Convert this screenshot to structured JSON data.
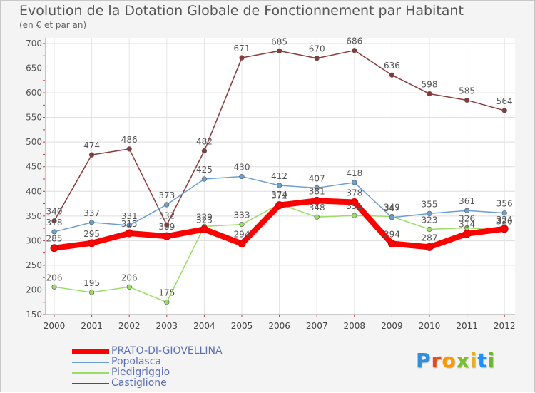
{
  "chart_data": {
    "type": "line",
    "title": "Evolution de la Dotation Globale de Fonctionnement par Habitant",
    "subtitle": "(en € et par an)",
    "xlabel": "",
    "ylabel": "",
    "categories": [
      "2000",
      "2001",
      "2002",
      "2003",
      "2004",
      "2005",
      "2006",
      "2007",
      "2008",
      "2009",
      "2010",
      "2011",
      "2012"
    ],
    "ylim": [
      150,
      700
    ],
    "yticks": [
      150,
      200,
      250,
      300,
      350,
      400,
      450,
      500,
      550,
      600,
      650,
      700
    ],
    "grid": true,
    "legend_position": "bottom-left",
    "series": [
      {
        "name": "PRATO-DI-GIOVELLINA",
        "color": "#ff0000",
        "values": [
          285,
          295,
          315,
          309,
          323,
          294,
          372,
          381,
          378,
          294,
          287,
          314,
          324
        ]
      },
      {
        "name": "Popolasca",
        "color": "#6b9fd0",
        "values": [
          318,
          337,
          331,
          373,
          425,
          430,
          412,
          407,
          418,
          347,
          355,
          361,
          356
        ]
      },
      {
        "name": "Piedigriggio",
        "color": "#99dd66",
        "values": [
          206,
          195,
          206,
          175,
          329,
          333,
          374,
          348,
          351,
          349,
          323,
          326,
          320
        ]
      },
      {
        "name": "Castiglione",
        "color": "#8b3a3a",
        "values": [
          340,
          474,
          486,
          332,
          482,
          671,
          685,
          670,
          686,
          636,
          598,
          585,
          564
        ]
      }
    ]
  },
  "logo": {
    "text": "Proxiti",
    "colors": [
      "#2f8fdc",
      "#e84c1c",
      "#ff9900",
      "#7bbf2a",
      "#e0b020",
      "#1e90ff",
      "#6ab82e"
    ]
  }
}
